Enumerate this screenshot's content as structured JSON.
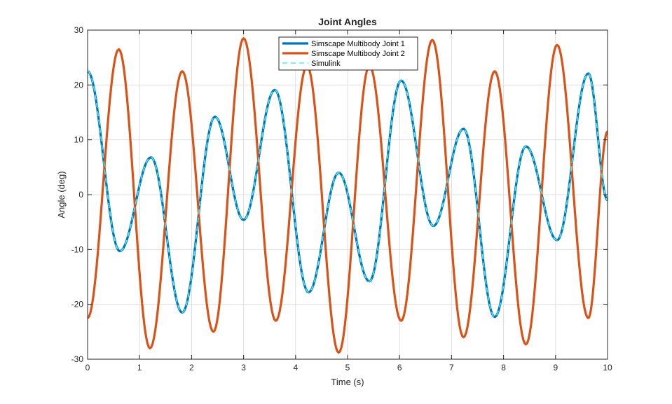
{
  "chart_data": {
    "type": "line",
    "title": "Joint Angles",
    "xlabel": "Time (s)",
    "ylabel": "Angle (deg)",
    "xlim": [
      0,
      10
    ],
    "ylim": [
      -30,
      30
    ],
    "xticks": [
      "0",
      "1",
      "2",
      "3",
      "4",
      "5",
      "6",
      "7",
      "8",
      "9",
      "10"
    ],
    "yticks": [
      "-30",
      "-20",
      "-10",
      "0",
      "10",
      "20",
      "30"
    ],
    "grid": true,
    "legend_position": "top-center",
    "series": [
      {
        "name": "Simscape Multibody Joint 1",
        "color": "#0072BD",
        "style": "solid",
        "x": [
          0,
          0.62,
          1.22,
          1.82,
          2.45,
          3.0,
          3.6,
          4.25,
          4.83,
          5.42,
          6.03,
          6.65,
          7.23,
          7.83,
          8.43,
          9.03,
          9.63,
          10
        ],
        "y": [
          22.5,
          -10.3,
          6.8,
          -21.5,
          14.2,
          -4.6,
          19.1,
          -17.8,
          4.0,
          -15.8,
          20.8,
          -5.7,
          12.0,
          -22.3,
          8.8,
          -8.3,
          22.1,
          -1.0
        ]
      },
      {
        "name": "Simscape Multibody Joint 2",
        "color": "#D95319",
        "style": "solid",
        "x": [
          0,
          0.6,
          1.2,
          1.82,
          2.42,
          3.0,
          3.62,
          4.22,
          4.83,
          5.42,
          6.03,
          6.63,
          7.23,
          7.83,
          8.43,
          9.03,
          9.63,
          10
        ],
        "y": [
          -22.5,
          26.5,
          -28.0,
          22.5,
          -25.0,
          28.5,
          -23.0,
          23.5,
          -28.8,
          23.5,
          -23.0,
          28.2,
          -26.0,
          22.5,
          -27.3,
          27.3,
          -22.5,
          11.5
        ]
      },
      {
        "name": "Simulink",
        "color": "#4DEEEA",
        "style": "dashed",
        "x": [
          0,
          0.62,
          1.22,
          1.82,
          2.45,
          3.0,
          3.6,
          4.25,
          4.83,
          5.42,
          6.03,
          6.65,
          7.23,
          7.83,
          8.43,
          9.03,
          9.63,
          10
        ],
        "y": [
          22.5,
          -10.3,
          6.8,
          -21.5,
          14.2,
          -4.6,
          19.1,
          -17.8,
          4.0,
          -15.8,
          20.8,
          -5.7,
          12.0,
          -22.3,
          8.8,
          -8.3,
          22.1,
          -1.0
        ]
      }
    ]
  }
}
